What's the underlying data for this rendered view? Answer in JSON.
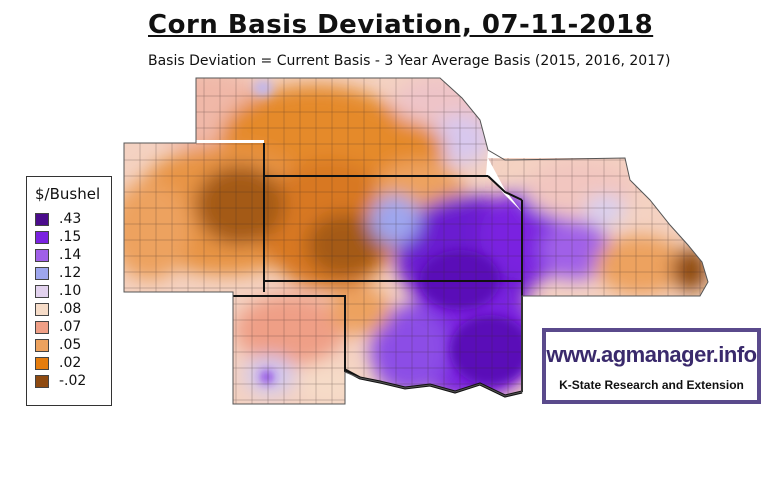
{
  "title": "Corn Basis Deviation, 07-11-2018",
  "subtitle": "Basis Deviation = Current Basis - 3 Year Average Basis (2015, 2016, 2017)",
  "legend": {
    "title": "$/Bushel",
    "items": [
      {
        "label": ".43",
        "color": "#4b0c8c"
      },
      {
        "label": ".15",
        "color": "#7a22e0"
      },
      {
        "label": ".14",
        "color": "#a060e8"
      },
      {
        "label": ".12",
        "color": "#9ea6ee"
      },
      {
        "label": ".10",
        "color": "#e2d2ee"
      },
      {
        "label": ".08",
        "color": "#f6dcc8"
      },
      {
        "label": ".07",
        "color": "#ef9f86"
      },
      {
        "label": ".05",
        "color": "#eda25e"
      },
      {
        "label": ".02",
        "color": "#e57d0e"
      },
      {
        "label": "-.02",
        "color": "#8e4a10"
      }
    ]
  },
  "brand": {
    "url": "www.agmanager.info",
    "tagline": "K-State Research and Extension"
  }
}
